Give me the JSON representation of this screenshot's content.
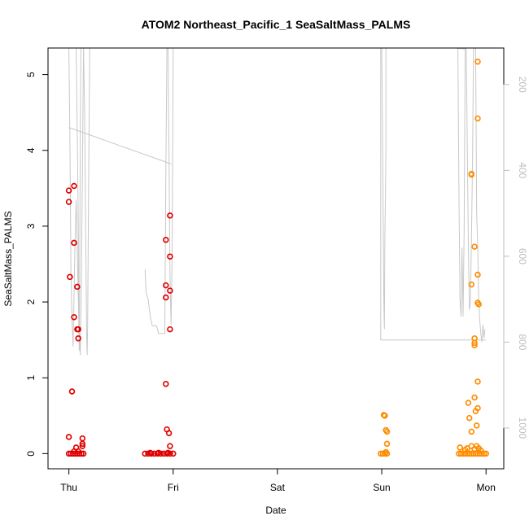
{
  "chart_data": {
    "type": "scatter",
    "title": "ATOM2 Northeast_Pacific_1 SeaSaltMass_PALMS",
    "xlabel": "Date",
    "ylabel": "SeaSaltMass_PALMS",
    "x_ticks": [
      {
        "day": 0,
        "label": "Thu"
      },
      {
        "day": 1,
        "label": "Fri"
      },
      {
        "day": 2,
        "label": "Sat"
      },
      {
        "day": 3,
        "label": "Sun"
      },
      {
        "day": 4,
        "label": "Mon"
      }
    ],
    "xlim": [
      -0.2,
      4.17
    ],
    "ylim": [
      -0.2,
      5.35
    ],
    "y_ticks": [
      0,
      1,
      2,
      3,
      4,
      5
    ],
    "y2_ticks": [
      200,
      400,
      600,
      800,
      1000
    ],
    "y2lim": [
      1095,
      115
    ],
    "y2_inverted": true,
    "grid": false,
    "series": [
      {
        "color": "#e00000",
        "points": [
          [
            0.0,
            3.47
          ],
          [
            0.0,
            3.32
          ],
          [
            0.01,
            2.33
          ],
          [
            0.0,
            0.22
          ],
          [
            0.03,
            0.82
          ],
          [
            0.05,
            3.53
          ],
          [
            0.05,
            2.78
          ],
          [
            0.05,
            1.8
          ],
          [
            0.08,
            2.2
          ],
          [
            0.08,
            1.64
          ],
          [
            0.09,
            1.64
          ],
          [
            0.09,
            1.52
          ],
          [
            0.07,
            0.08
          ],
          [
            0.13,
            0.2
          ],
          [
            0.13,
            0.13
          ],
          [
            0.13,
            0.1
          ],
          [
            0.0,
            0.0
          ],
          [
            0.02,
            0.0
          ],
          [
            0.04,
            0.0
          ],
          [
            0.06,
            0.0
          ],
          [
            0.08,
            0.0
          ],
          [
            0.1,
            0.0
          ],
          [
            0.12,
            0.0
          ],
          [
            0.14,
            0.0
          ],
          [
            0.05,
            0.03
          ],
          [
            0.09,
            0.03
          ],
          [
            0.93,
            2.22
          ],
          [
            0.93,
            2.82
          ],
          [
            0.93,
            2.06
          ],
          [
            0.93,
            0.92
          ],
          [
            0.94,
            0.32
          ],
          [
            0.96,
            0.27
          ],
          [
            0.97,
            3.14
          ],
          [
            0.97,
            2.6
          ],
          [
            0.97,
            2.15
          ],
          [
            0.97,
            1.64
          ],
          [
            0.97,
            0.1
          ],
          [
            0.73,
            0.0
          ],
          [
            0.76,
            0.0
          ],
          [
            0.79,
            0.0
          ],
          [
            0.82,
            0.0
          ],
          [
            0.85,
            0.0
          ],
          [
            0.88,
            0.0
          ],
          [
            0.91,
            0.0
          ],
          [
            0.94,
            0.0
          ],
          [
            0.97,
            0.0
          ],
          [
            1.0,
            0.0
          ],
          [
            0.78,
            0.01
          ],
          [
            0.86,
            0.01
          ],
          [
            0.95,
            0.01
          ]
        ]
      },
      {
        "color": "#ff8c00",
        "points": [
          [
            3.02,
            0.51
          ],
          [
            3.03,
            0.5
          ],
          [
            3.04,
            0.31
          ],
          [
            3.05,
            0.29
          ],
          [
            3.05,
            0.13
          ],
          [
            2.99,
            0.0
          ],
          [
            3.01,
            0.0
          ],
          [
            3.03,
            0.0
          ],
          [
            3.05,
            0.0
          ],
          [
            3.04,
            0.02
          ],
          [
            3.86,
            3.69
          ],
          [
            3.86,
            3.68
          ],
          [
            3.86,
            2.23
          ],
          [
            3.89,
            2.73
          ],
          [
            3.89,
            1.52
          ],
          [
            3.89,
            1.46
          ],
          [
            3.89,
            1.43
          ],
          [
            3.92,
            5.17
          ],
          [
            3.92,
            4.42
          ],
          [
            3.92,
            2.36
          ],
          [
            3.92,
            1.99
          ],
          [
            3.93,
            1.97
          ],
          [
            3.92,
            0.95
          ],
          [
            3.89,
            0.74
          ],
          [
            3.83,
            0.67
          ],
          [
            3.92,
            0.6
          ],
          [
            3.9,
            0.56
          ],
          [
            3.84,
            0.47
          ],
          [
            3.91,
            0.37
          ],
          [
            3.86,
            0.29
          ],
          [
            3.75,
            0.08
          ],
          [
            3.8,
            0.05
          ],
          [
            3.82,
            0.07
          ],
          [
            3.86,
            0.1
          ],
          [
            3.89,
            0.06
          ],
          [
            3.91,
            0.1
          ],
          [
            3.93,
            0.07
          ],
          [
            3.95,
            0.04
          ],
          [
            3.74,
            0.0
          ],
          [
            3.76,
            0.0
          ],
          [
            3.78,
            0.0
          ],
          [
            3.8,
            0.0
          ],
          [
            3.82,
            0.0
          ],
          [
            3.84,
            0.0
          ],
          [
            3.86,
            0.0
          ],
          [
            3.88,
            0.0
          ],
          [
            3.9,
            0.0
          ],
          [
            3.92,
            0.0
          ],
          [
            3.94,
            0.0
          ],
          [
            3.96,
            0.0
          ],
          [
            3.98,
            0.0
          ],
          [
            4.0,
            0.0
          ]
        ]
      }
    ],
    "altitude_trace": {
      "color": "#c8c8c8",
      "segments": [
        [
          [
            0.0,
            115
          ],
          [
            0.01,
            330
          ],
          [
            0.02,
            640
          ],
          [
            0.03,
            750
          ],
          [
            0.04,
            810
          ],
          [
            0.05,
            690
          ],
          [
            0.06,
            560
          ],
          [
            0.07,
            470
          ],
          [
            0.08,
            580
          ],
          [
            0.09,
            700
          ],
          [
            0.1,
            780
          ],
          [
            0.11,
            830
          ],
          [
            0.12,
            650
          ],
          [
            0.13,
            400
          ],
          [
            0.14,
            115
          ]
        ],
        [
          [
            0.07,
            115
          ],
          [
            0.08,
            310
          ],
          [
            0.09,
            520
          ],
          [
            0.095,
            760
          ],
          [
            0.1,
            820
          ],
          [
            0.105,
            560
          ],
          [
            0.11,
            300
          ],
          [
            0.115,
            115
          ]
        ],
        [
          [
            0.14,
            115
          ],
          [
            0.15,
            250
          ],
          [
            0.16,
            500
          ],
          [
            0.17,
            780
          ],
          [
            0.175,
            830
          ],
          [
            0.18,
            760
          ],
          [
            0.19,
            400
          ],
          [
            0.2,
            115
          ]
        ],
        [
          [
            0.0,
            300
          ],
          [
            0.98,
            385
          ]
        ],
        [
          [
            0.73,
            630
          ],
          [
            0.74,
            685
          ],
          [
            0.76,
            700
          ],
          [
            0.78,
            740
          ],
          [
            0.8,
            762
          ],
          [
            0.82,
            762
          ],
          [
            0.84,
            762
          ],
          [
            0.86,
            780
          ],
          [
            0.92,
            780
          ]
        ],
        [
          [
            0.92,
            780
          ],
          [
            0.93,
            400
          ],
          [
            0.94,
            115
          ]
        ],
        [
          [
            0.95,
            115
          ],
          [
            0.96,
            350
          ],
          [
            0.97,
            650
          ],
          [
            0.98,
            760
          ],
          [
            0.99,
            600
          ],
          [
            1.0,
            115
          ]
        ],
        [
          [
            2.99,
            115
          ],
          [
            3.0,
            115
          ],
          [
            3.01,
            400
          ],
          [
            3.02,
            700
          ],
          [
            3.025,
            770
          ],
          [
            3.03,
            550
          ],
          [
            3.035,
            465
          ],
          [
            3.04,
            350
          ],
          [
            3.04,
            115
          ]
        ],
        [
          [
            3.0,
            115
          ],
          [
            3.7,
            115
          ],
          [
            3.8,
            117
          ]
        ],
        [
          [
            2.99,
            115
          ],
          [
            2.99,
            795
          ],
          [
            4.0,
            795
          ]
        ],
        [
          [
            3.73,
            115
          ],
          [
            3.74,
            450
          ],
          [
            3.75,
            700
          ],
          [
            3.76,
            740
          ],
          [
            3.77,
            580
          ],
          [
            3.78,
            740
          ],
          [
            3.79,
            540
          ],
          [
            3.8,
            115
          ]
        ],
        [
          [
            3.81,
            115
          ],
          [
            3.83,
            560
          ],
          [
            3.84,
            725
          ],
          [
            3.85,
            710
          ],
          [
            3.86,
            560
          ],
          [
            3.87,
            380
          ],
          [
            3.88,
            115
          ]
        ],
        [
          [
            3.9,
            115
          ],
          [
            3.91,
            500
          ],
          [
            3.92,
            580
          ],
          [
            3.93,
            700
          ],
          [
            3.94,
            750
          ],
          [
            3.95,
            780
          ],
          [
            3.96,
            800
          ],
          [
            3.97,
            760
          ],
          [
            3.98,
            790
          ],
          [
            3.99,
            770
          ]
        ]
      ]
    }
  }
}
